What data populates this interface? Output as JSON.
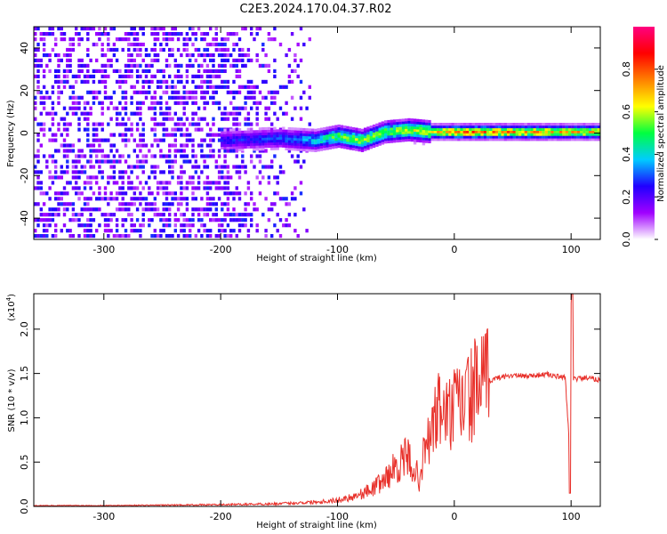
{
  "title": "C2E3.2024.170.04.37.R02",
  "chart_data": [
    {
      "type": "heatmap",
      "xlabel": "Height of straight line (km)",
      "ylabel": "Frequency (Hz)",
      "xlim": [
        -360,
        125
      ],
      "ylim": [
        -50,
        50
      ],
      "xticks": [
        -300,
        -200,
        -100,
        0,
        100
      ],
      "yticks": [
        -40,
        -20,
        0,
        20,
        40
      ],
      "colorbar": {
        "label": "Normalized spectral amplitude",
        "range": [
          0.0,
          1.0
        ],
        "ticks": [
          0.0,
          0.2,
          0.4,
          0.6,
          0.8
        ],
        "colors": [
          "#ffffff",
          "#a000ff",
          "#2000ff",
          "#00ccff",
          "#00ff40",
          "#ffff00",
          "#ff8000",
          "#ff0000",
          "#ff0080"
        ]
      },
      "ridge": [
        {
          "x": -200,
          "freq": -4,
          "amp": 0.25
        },
        {
          "x": -150,
          "freq": -3,
          "amp": 0.3
        },
        {
          "x": -120,
          "freq": -4,
          "amp": 0.4
        },
        {
          "x": -100,
          "freq": -2,
          "amp": 0.55
        },
        {
          "x": -80,
          "freq": -4,
          "amp": 0.6
        },
        {
          "x": -60,
          "freq": 0,
          "amp": 0.55
        },
        {
          "x": -40,
          "freq": 1,
          "amp": 0.6
        },
        {
          "x": -20,
          "freq": 0,
          "amp": 0.65
        },
        {
          "x": 0,
          "freq": 0,
          "amp": 0.8
        },
        {
          "x": 50,
          "freq": 0,
          "amp": 0.75
        },
        {
          "x": 100,
          "freq": 0,
          "amp": 0.7
        },
        {
          "x": 125,
          "freq": 0,
          "amp": 0.7
        }
      ],
      "noise_region": {
        "x_from": -360,
        "x_to": -120,
        "freq_from": -50,
        "freq_to": 50,
        "amp": 0.2
      }
    },
    {
      "type": "line",
      "xlabel": "Height of straight line (km)",
      "ylabel": "SNR (10 * v/v)",
      "scale_label": "(x10",
      "scale_exp": "4",
      "scale_close": ")",
      "xlim": [
        -360,
        125
      ],
      "ylim": [
        0,
        2.4
      ],
      "xticks": [
        -300,
        -200,
        -100,
        0,
        100
      ],
      "yticks": [
        0.0,
        0.5,
        1.0,
        1.5,
        2.0
      ],
      "series": [
        {
          "color": "#e8302a",
          "x": [
            -360,
            -300,
            -250,
            -200,
            -150,
            -120,
            -100,
            -90,
            -80,
            -70,
            -60,
            -50,
            -45,
            -40,
            -35,
            -30,
            -25,
            -20,
            -15,
            -10,
            -5,
            0,
            10,
            20,
            30,
            40,
            50,
            60,
            70,
            80,
            90,
            95,
            98,
            100,
            102,
            105,
            110,
            125
          ],
          "values": [
            0.01,
            0.01,
            0.015,
            0.02,
            0.03,
            0.05,
            0.07,
            0.1,
            0.14,
            0.2,
            0.3,
            0.45,
            0.5,
            0.55,
            0.45,
            0.3,
            0.65,
            0.8,
            1.05,
            1.1,
            1.0,
            1.1,
            1.2,
            1.35,
            1.42,
            1.46,
            1.48,
            1.47,
            1.48,
            1.49,
            1.46,
            1.45,
            0.8,
            2.3,
            1.45,
            1.44,
            1.45,
            1.43
          ]
        }
      ]
    }
  ]
}
